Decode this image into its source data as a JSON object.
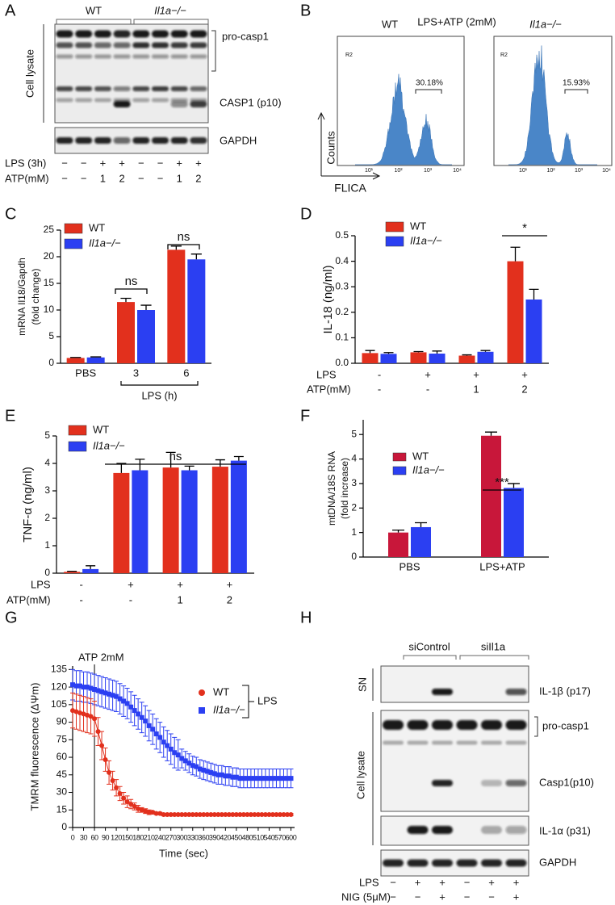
{
  "panel_a": {
    "letter": "A",
    "groups": [
      "WT",
      "Il1a−/−"
    ],
    "side_label": "Cell lysate",
    "band_labels": [
      "pro-casp1",
      "CASP1 (p10)",
      "GAPDH"
    ],
    "conditions": [
      {
        "label": "LPS (3h)",
        "lanes": [
          "−",
          "−",
          "+",
          "+",
          "−",
          "−",
          "+",
          "+"
        ]
      },
      {
        "label": "ATP(mM)",
        "lanes": [
          "−",
          "−",
          "1",
          "2",
          "−",
          "−",
          "1",
          "2"
        ]
      }
    ]
  },
  "panel_b": {
    "letter": "B",
    "title": "LPS+ATP (2mM)",
    "y_axis": "Counts",
    "x_axis": "FLICA",
    "ticks": [
      "10¹",
      "10²",
      "10³",
      "10⁴"
    ],
    "plots": [
      {
        "name": "WT",
        "gate": "R2",
        "percent": "30.18%"
      },
      {
        "name": "Il1a−/−",
        "gate": "R2",
        "percent": "15.93%"
      }
    ]
  },
  "chart_data": [
    {
      "panel": "C",
      "type": "bar",
      "ylabel": [
        "mRNA Il18/Gapdh",
        "(fold change)"
      ],
      "categories": [
        "PBS",
        "3",
        "6"
      ],
      "xlabel": "LPS (h)",
      "series": [
        {
          "name": "WT",
          "color": "#e2301d",
          "values": [
            1.0,
            11.5,
            21.3
          ],
          "errors": [
            0.1,
            0.7,
            0.7
          ]
        },
        {
          "name": "Il1a−/−",
          "color": "#2b3ff2",
          "values": [
            1.1,
            10.0,
            19.5
          ],
          "errors": [
            0.1,
            0.9,
            1.0
          ]
        }
      ],
      "ylim": [
        0,
        25
      ],
      "yticks": [
        0,
        5,
        10,
        15,
        20,
        25
      ],
      "annotations": [
        "ns",
        "ns"
      ]
    },
    {
      "panel": "D",
      "type": "bar",
      "ylabel": "IL-18 (ng/ml)",
      "categories": [
        null,
        null,
        null,
        null
      ],
      "conditions": [
        {
          "label": "LPS",
          "lanes": [
            "-",
            "+",
            "+",
            "+"
          ]
        },
        {
          "label": "ATP(mM)",
          "lanes": [
            "-",
            "-",
            "1",
            "2"
          ]
        }
      ],
      "series": [
        {
          "name": "WT",
          "color": "#e2301d",
          "values": [
            0.04,
            0.043,
            0.03,
            0.4
          ],
          "errors": [
            0.01,
            0.003,
            0.003,
            0.055
          ]
        },
        {
          "name": "Il1a−/−",
          "color": "#2b3ff2",
          "values": [
            0.037,
            0.038,
            0.045,
            0.25
          ],
          "errors": [
            0.005,
            0.01,
            0.005,
            0.04
          ]
        }
      ],
      "ylim": [
        0,
        0.5
      ],
      "yticks": [
        {
          "value": 0,
          "label": "0.0"
        },
        0.1,
        0.2,
        0.3,
        0.4,
        0.5
      ],
      "annotations": [
        "*"
      ]
    },
    {
      "panel": "E",
      "type": "bar",
      "ylabel": "TNF-α (ng/ml)",
      "categories": [
        null,
        null,
        null,
        null
      ],
      "conditions": [
        {
          "label": "LPS",
          "lanes": [
            "-",
            "+",
            "+",
            "+"
          ]
        },
        {
          "label": "ATP(mM)",
          "lanes": [
            "-",
            "-",
            "1",
            "2"
          ]
        }
      ],
      "series": [
        {
          "name": "WT",
          "color": "#e2301d",
          "values": [
            0.05,
            3.65,
            3.85,
            3.88
          ],
          "errors": [
            0.02,
            0.35,
            0.55,
            0.25
          ]
        },
        {
          "name": "Il1a−/−",
          "color": "#2b3ff2",
          "values": [
            0.15,
            3.75,
            3.75,
            4.1
          ],
          "errors": [
            0.12,
            0.4,
            0.15,
            0.15
          ]
        }
      ],
      "ylim": [
        0,
        5
      ],
      "yticks": [
        0,
        1,
        2,
        3,
        4,
        5
      ],
      "annotations": [
        "ns"
      ]
    },
    {
      "panel": "F",
      "type": "bar",
      "ylabel": [
        "mtDNA/18S RNA",
        "(fold increase)"
      ],
      "categories": [
        "PBS",
        "LPS+ATP"
      ],
      "series": [
        {
          "name": "WT",
          "color": "#c8173a",
          "values": [
            1.0,
            4.95
          ],
          "errors": [
            0.1,
            0.15
          ]
        },
        {
          "name": "Il1a−/−",
          "color": "#2b3ff2",
          "values": [
            1.22,
            2.82
          ],
          "errors": [
            0.18,
            0.18
          ]
        }
      ],
      "ylim": [
        0,
        5.6
      ],
      "yticks": [
        0,
        1,
        2,
        3,
        4,
        5
      ],
      "annotations": [
        "***"
      ]
    },
    {
      "panel": "G",
      "type": "line",
      "ylabel": "TMRM fluorescence (ΔΨm)",
      "xlabel": "Time (sec)",
      "annotation": "ATP 2mM",
      "marker_x": 60,
      "legend_group": "LPS",
      "x": [
        0,
        10,
        20,
        30,
        40,
        50,
        60,
        70,
        80,
        90,
        100,
        110,
        120,
        130,
        140,
        150,
        160,
        170,
        180,
        190,
        200,
        210,
        220,
        230,
        240,
        250,
        260,
        270,
        280,
        290,
        300,
        310,
        320,
        330,
        340,
        350,
        360,
        370,
        380,
        390,
        400,
        410,
        420,
        430,
        440,
        450,
        460,
        470,
        480,
        490,
        500,
        510,
        520,
        530,
        540,
        550,
        560,
        570,
        580,
        590,
        600
      ],
      "series": [
        {
          "name": "WT",
          "color": "#e2301d",
          "marker": "circle",
          "values": [
            100,
            99,
            98,
            97,
            96,
            95,
            93,
            82,
            70,
            58,
            47,
            40,
            34,
            29,
            25,
            22,
            20,
            18,
            16,
            15,
            14,
            13,
            13,
            12,
            12,
            11,
            11,
            11,
            11,
            11,
            11,
            11,
            11,
            11,
            11,
            11,
            11,
            11,
            11,
            11,
            11,
            11,
            11,
            11,
            11,
            11,
            11,
            11,
            11,
            11,
            11,
            11,
            11,
            11,
            11,
            11,
            11,
            11,
            11,
            11,
            11
          ],
          "errors": [
            15,
            15,
            15,
            15,
            15,
            15,
            15,
            12,
            12,
            10,
            10,
            8,
            7,
            6,
            5,
            5,
            4,
            3,
            3,
            2,
            2,
            2,
            1,
            1,
            1,
            1,
            1,
            1,
            1,
            1,
            1,
            1,
            1,
            1,
            1,
            1,
            1,
            1,
            1,
            1,
            1,
            1,
            1,
            1,
            1,
            1,
            1,
            1,
            1,
            1,
            1,
            1,
            1,
            1,
            1,
            1,
            1,
            1,
            1,
            1,
            1
          ]
        },
        {
          "name": "Il1a−/−",
          "color": "#2b3ff2",
          "marker": "square",
          "values": [
            122,
            121,
            121,
            120,
            120,
            119,
            118,
            117,
            116,
            115,
            114,
            113,
            112,
            110,
            108,
            106,
            103,
            100,
            97,
            94,
            91,
            87,
            84,
            80,
            77,
            73,
            70,
            67,
            64,
            62,
            59,
            57,
            55,
            53,
            52,
            50,
            49,
            48,
            47,
            46,
            45,
            45,
            44,
            44,
            43,
            43,
            42,
            42,
            42,
            42,
            42,
            42,
            42,
            42,
            42,
            42,
            42,
            42,
            42,
            42,
            42
          ],
          "errors": [
            13,
            13,
            13,
            13,
            13,
            13,
            13,
            13,
            13,
            13,
            13,
            13,
            13,
            13,
            13,
            13,
            13,
            13,
            13,
            13,
            13,
            13,
            13,
            13,
            13,
            13,
            13,
            13,
            13,
            13,
            8,
            8,
            8,
            8,
            8,
            8,
            8,
            8,
            8,
            8,
            8,
            8,
            8,
            8,
            8,
            8,
            8,
            8,
            8,
            8,
            8,
            8,
            8,
            8,
            8,
            8,
            8,
            8,
            8,
            8,
            8
          ]
        }
      ],
      "xlim": [
        0,
        610
      ],
      "xticks": [
        0,
        30,
        60,
        90,
        120,
        150,
        180,
        210,
        240,
        270,
        300,
        330,
        360,
        390,
        420,
        450,
        480,
        510,
        540,
        570,
        600
      ],
      "ylim": [
        0,
        138
      ],
      "yticks": [
        0,
        15,
        30,
        45,
        60,
        75,
        90,
        105,
        120,
        135
      ]
    }
  ],
  "panel_h": {
    "letter": "H",
    "groups": [
      "siControl",
      "siIl1a"
    ],
    "side_labels": [
      "SN",
      "Cell lysate"
    ],
    "band_labels": [
      "IL-1β (p17)",
      "pro-casp1",
      "Casp1(p10)",
      "IL-1α (p31)",
      "GAPDH"
    ],
    "conditions": [
      {
        "label": "LPS",
        "lanes": [
          "−",
          "+",
          "+",
          "−",
          "+",
          "+"
        ]
      },
      {
        "label": "NIG (5μM)",
        "lanes": [
          "−",
          "−",
          "+",
          "−",
          "−",
          "+"
        ]
      }
    ]
  }
}
